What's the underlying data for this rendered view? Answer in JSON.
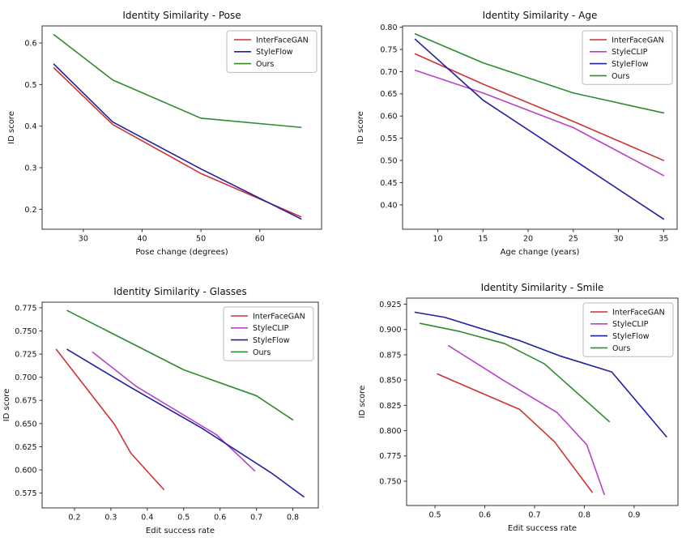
{
  "figure": {
    "background": "#ffffff",
    "axis_color": "#333333",
    "text_color": "#111111",
    "legend_border_color": "#bbbbbb",
    "legend_background": "#ffffff"
  },
  "chart_data": [
    {
      "type": "line",
      "title": "Identity Similarity - Pose",
      "xlabel": "Pose change (degrees)",
      "ylabel": "ID score",
      "xlim": [
        23.0,
        70.5
      ],
      "ylim": [
        0.152,
        0.641
      ],
      "xticks": [
        30,
        40,
        50,
        60
      ],
      "xtick_labels": [
        "30",
        "40",
        "50",
        "60"
      ],
      "yticks": [
        0.2,
        0.3,
        0.4,
        0.5,
        0.6
      ],
      "ytick_labels": [
        "0.2",
        "0.3",
        "0.4",
        "0.5",
        "0.6"
      ],
      "grid": false,
      "legend_position": "upper right",
      "series": [
        {
          "name": "InterFaceGAN",
          "color": "#cc3333",
          "x": [
            25,
            35,
            50,
            67
          ],
          "y": [
            0.54,
            0.404,
            0.286,
            0.182
          ]
        },
        {
          "name": "StyleFlow",
          "color": "#2020a0",
          "x": [
            25,
            35,
            50,
            67
          ],
          "y": [
            0.549,
            0.41,
            0.297,
            0.177
          ]
        },
        {
          "name": "Ours",
          "color": "#2e8b2e",
          "x": [
            25,
            35,
            50,
            67
          ],
          "y": [
            0.62,
            0.511,
            0.419,
            0.397
          ]
        }
      ]
    },
    {
      "type": "line",
      "title": "Identity Similarity - Age",
      "xlabel": "Age change (years)",
      "ylabel": "ID score",
      "xlim": [
        6.1,
        36.5
      ],
      "ylim": [
        0.345,
        0.803
      ],
      "xticks": [
        10,
        15,
        20,
        25,
        30,
        35
      ],
      "xtick_labels": [
        "10",
        "15",
        "20",
        "25",
        "30",
        "35"
      ],
      "yticks": [
        0.4,
        0.45,
        0.5,
        0.55,
        0.6,
        0.65,
        0.7,
        0.75,
        0.8
      ],
      "ytick_labels": [
        "0.40",
        "0.45",
        "0.50",
        "0.55",
        "0.60",
        "0.65",
        "0.70",
        "0.75",
        "0.80"
      ],
      "grid": false,
      "legend_position": "upper right",
      "series": [
        {
          "name": "InterFaceGAN",
          "color": "#cc3333",
          "x": [
            7.5,
            15,
            25,
            35
          ],
          "y": [
            0.74,
            0.672,
            0.588,
            0.5
          ]
        },
        {
          "name": "StyleCLIP",
          "color": "#b843c8",
          "x": [
            7.5,
            15,
            25,
            35
          ],
          "y": [
            0.703,
            0.652,
            0.574,
            0.466
          ]
        },
        {
          "name": "StyleFlow",
          "color": "#2020a0",
          "x": [
            7.5,
            15,
            25,
            35
          ],
          "y": [
            0.773,
            0.636,
            0.502,
            0.368
          ]
        },
        {
          "name": "Ours",
          "color": "#2e8b2e",
          "x": [
            7.5,
            15,
            25,
            35
          ],
          "y": [
            0.785,
            0.72,
            0.652,
            0.607
          ]
        }
      ]
    },
    {
      "type": "line",
      "title": "Identity Similarity - Glasses",
      "xlabel": "Edit success rate",
      "ylabel": "ID score",
      "xlim": [
        0.111,
        0.87
      ],
      "ylim": [
        0.559,
        0.781
      ],
      "xticks": [
        0.2,
        0.3,
        0.4,
        0.5,
        0.6,
        0.7,
        0.8
      ],
      "xtick_labels": [
        "0.2",
        "0.3",
        "0.4",
        "0.5",
        "0.6",
        "0.7",
        "0.8"
      ],
      "yticks": [
        0.575,
        0.6,
        0.625,
        0.65,
        0.675,
        0.7,
        0.725,
        0.75,
        0.775
      ],
      "ytick_labels": [
        "0.575",
        "0.600",
        "0.625",
        "0.650",
        "0.675",
        "0.700",
        "0.725",
        "0.750",
        "0.775"
      ],
      "grid": false,
      "legend_position": "upper right",
      "series": [
        {
          "name": "InterFaceGAN",
          "color": "#cc3333",
          "x": [
            0.15,
            0.31,
            0.355,
            0.445
          ],
          "y": [
            0.73,
            0.649,
            0.618,
            0.579
          ]
        },
        {
          "name": "StyleCLIP",
          "color": "#b843c8",
          "x": [
            0.25,
            0.37,
            0.59,
            0.655,
            0.695
          ],
          "y": [
            0.727,
            0.69,
            0.638,
            0.614,
            0.599
          ]
        },
        {
          "name": "StyleFlow",
          "color": "#2020a0",
          "x": [
            0.18,
            0.35,
            0.55,
            0.74,
            0.83
          ],
          "y": [
            0.73,
            0.69,
            0.645,
            0.597,
            0.571
          ]
        },
        {
          "name": "Ours",
          "color": "#2e8b2e",
          "x": [
            0.18,
            0.5,
            0.7,
            0.8
          ],
          "y": [
            0.772,
            0.708,
            0.68,
            0.654
          ]
        }
      ]
    },
    {
      "type": "line",
      "title": "Identity Similarity - Smile",
      "xlabel": "Edit success rate",
      "ylabel": "ID score",
      "xlim": [
        0.443,
        0.988
      ],
      "ylim": [
        0.726,
        0.931
      ],
      "xticks": [
        0.5,
        0.6,
        0.7,
        0.8,
        0.9
      ],
      "xtick_labels": [
        "0.5",
        "0.6",
        "0.7",
        "0.8",
        "0.9"
      ],
      "yticks": [
        0.75,
        0.775,
        0.8,
        0.825,
        0.85,
        0.875,
        0.9,
        0.925
      ],
      "ytick_labels": [
        "0.750",
        "0.775",
        "0.800",
        "0.825",
        "0.850",
        "0.875",
        "0.900",
        "0.925"
      ],
      "grid": false,
      "legend_position": "upper right",
      "series": [
        {
          "name": "InterFaceGAN",
          "color": "#cc3333",
          "x": [
            0.505,
            0.58,
            0.67,
            0.74,
            0.816
          ],
          "y": [
            0.856,
            0.84,
            0.821,
            0.789,
            0.739
          ]
        },
        {
          "name": "StyleCLIP",
          "color": "#b843c8",
          "x": [
            0.527,
            0.64,
            0.745,
            0.805,
            0.84
          ],
          "y": [
            0.884,
            0.849,
            0.818,
            0.786,
            0.737
          ]
        },
        {
          "name": "StyleFlow",
          "color": "#2020a0",
          "x": [
            0.46,
            0.52,
            0.67,
            0.75,
            0.855,
            0.965
          ],
          "y": [
            0.917,
            0.912,
            0.889,
            0.874,
            0.858,
            0.794
          ]
        },
        {
          "name": "Ours",
          "color": "#2e8b2e",
          "x": [
            0.47,
            0.55,
            0.64,
            0.72,
            0.85
          ],
          "y": [
            0.906,
            0.898,
            0.886,
            0.866,
            0.809
          ]
        }
      ]
    }
  ]
}
